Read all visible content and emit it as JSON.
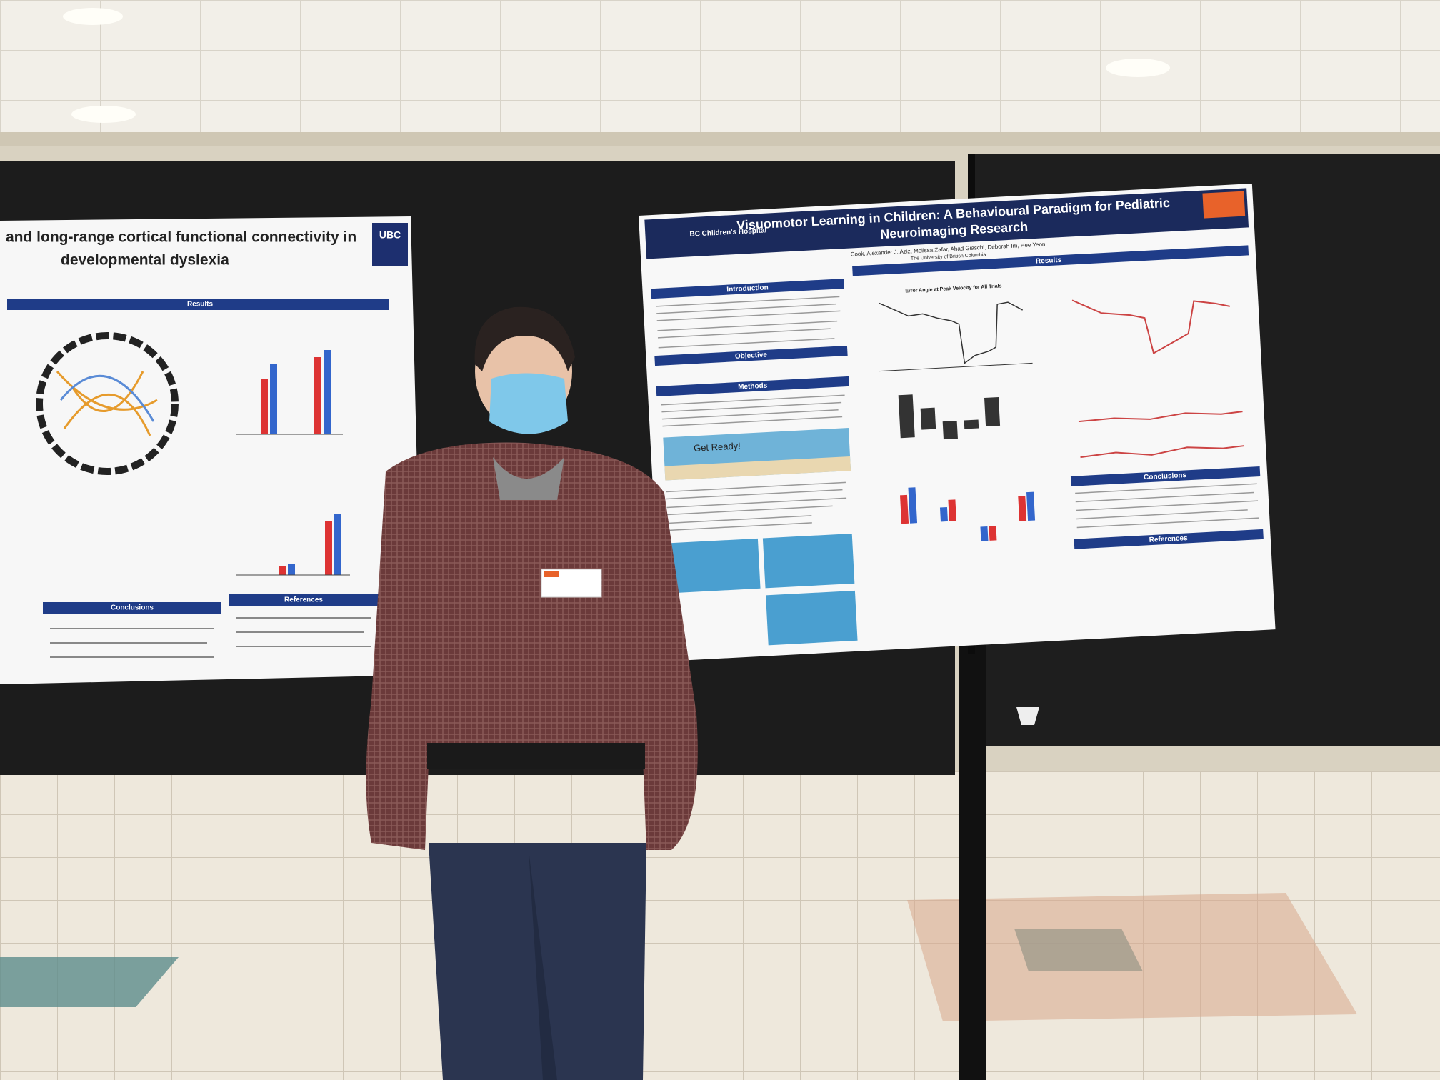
{
  "left_poster": {
    "title_lines": [
      "and long-range cortical functional connectivity in",
      "developmental dyslexia"
    ],
    "logo": "UBC",
    "sections": [
      "Results",
      "Conclusions",
      "References"
    ]
  },
  "right_poster": {
    "title_lines": [
      "Visuomotor Learning in Children: A Behavioural Paradigm for Pediatric",
      "Neuroimaging Research"
    ],
    "authors": "Cook, Alexander J.    Aziz, Melissa    Zafar, Ahad    Giaschi, Deborah    Im, Hee Yeon",
    "affiliation": "The University of British Columbia",
    "logo": "BC Children's Hospital",
    "sections": [
      "Introduction",
      "Objective",
      "Methods",
      "Results",
      "Conclusions",
      "References"
    ],
    "panel_text": "Get Ready!",
    "chart_title": "Error Angle at Peak Velocity for All Trials"
  }
}
